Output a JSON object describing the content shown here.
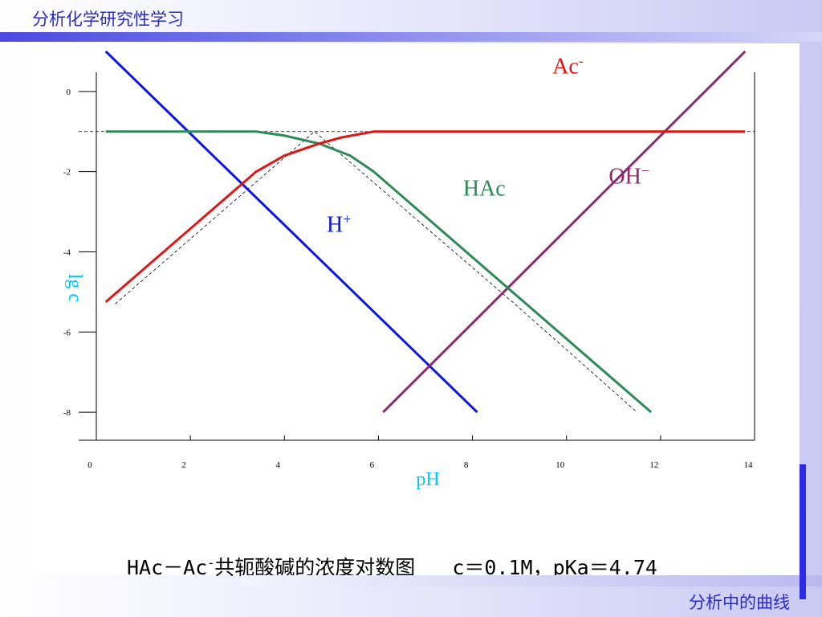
{
  "header": {
    "course_title": "分析化学研究性学习"
  },
  "footer": {
    "section_title": "分析中的曲线"
  },
  "caption": {
    "part1": "HAc－Ac",
    "sup": "-",
    "part2": "共轭酸碱的浓度对数图",
    "part3": "c＝0.1M，pKa＝4.74"
  },
  "chart_data": {
    "type": "line",
    "xlabel": "pH",
    "ylabel": "lg c",
    "xlim": [
      0,
      14
    ],
    "ylim": [
      -8.7,
      1.2
    ],
    "x_ticks": [
      {
        "v": 0,
        "label": "0"
      },
      {
        "v": 2,
        "label": "2"
      },
      {
        "v": 4,
        "label": "4"
      },
      {
        "v": 6,
        "label": "6"
      },
      {
        "v": 8,
        "label": "8"
      },
      {
        "v": 10,
        "label": "10"
      },
      {
        "v": 12,
        "label": "12"
      },
      {
        "v": 14,
        "label": "14"
      }
    ],
    "y_ticks": [
      {
        "v": 0,
        "label": "0"
      },
      {
        "v": -2,
        "label": "-2"
      },
      {
        "v": -4,
        "label": "-4"
      },
      {
        "v": -6,
        "label": "-6"
      },
      {
        "v": -8,
        "label": "-8"
      }
    ],
    "guides": {
      "horizontal_y": -1,
      "asymptotes": [
        [
          [
            0.4,
            -5.3
          ],
          [
            4.64,
            -1
          ],
          [
            8.9,
            -5.3
          ],
          [
            11.5,
            -8.0
          ]
        ]
      ]
    },
    "series": [
      {
        "name": "H+",
        "label_main": "H",
        "label_sup": "+",
        "label_pos": [
          4.9,
          -3.5
        ],
        "color": "#0b16e0",
        "x": [
          0.2,
          8.1
        ],
        "y": [
          1.0,
          -8.0
        ]
      },
      {
        "name": "OH-",
        "label_main": "OH",
        "label_sup": "−",
        "label_pos": [
          10.9,
          -2.3
        ],
        "color": "#8b2a6e",
        "x": [
          6.1,
          13.8
        ],
        "y": [
          -8.0,
          1.0
        ]
      },
      {
        "name": "HAc",
        "label_main": "HAc",
        "label_sup": "",
        "label_pos": [
          7.8,
          -2.6
        ],
        "color": "#2e8b57",
        "x": [
          0.2,
          3.4,
          4.0,
          4.74,
          5.4,
          5.9,
          11.8
        ],
        "y": [
          -1.0,
          -1.0,
          -1.1,
          -1.3,
          -1.6,
          -2.0,
          -8.0
        ]
      },
      {
        "name": "Ac-",
        "label_main": "Ac",
        "label_sup": "-",
        "label_pos": [
          9.7,
          0.45
        ],
        "color": "#e01616",
        "x": [
          0.2,
          3.4,
          4.0,
          4.74,
          5.2,
          5.9,
          13.8
        ],
        "y": [
          -5.25,
          -2.0,
          -1.6,
          -1.3,
          -1.15,
          -1.0,
          -1.0
        ]
      }
    ]
  }
}
